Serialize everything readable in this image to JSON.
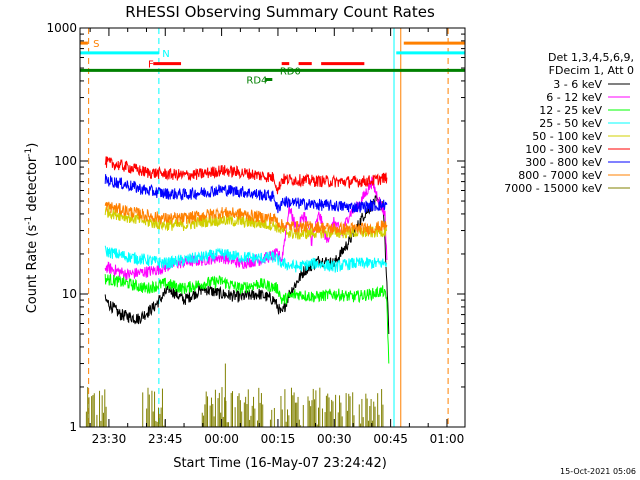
{
  "chart_data": {
    "type": "line",
    "title": "RHESSI Observing Summary Count Rates",
    "xlabel": "Start Time (16-May-07 23:24:42)",
    "ylabel_main": "Count Rate (s",
    "ylabel_sup1": "-1",
    "ylabel_mid": " detector",
    "ylabel_sup2": "-1",
    "ylabel_end": ")",
    "y_scale": "log",
    "ylim": [
      1,
      1000
    ],
    "xlim_minutes": [
      -7.7,
      94.8
    ],
    "x_ticks": [
      {
        "label": "23:30",
        "t": 0
      },
      {
        "label": "23:45",
        "t": 15
      },
      {
        "label": "00:00",
        "t": 30
      },
      {
        "label": "00:15",
        "t": 45
      },
      {
        "label": "00:30",
        "t": 60
      },
      {
        "label": "00:45",
        "t": 75
      },
      {
        "label": "01:00",
        "t": 90
      }
    ],
    "y_ticks": [
      {
        "label": "1",
        "v": 1
      },
      {
        "label": "10",
        "v": 10
      },
      {
        "label": "100",
        "v": 100
      },
      {
        "label": "1000",
        "v": 1000
      }
    ],
    "legend_header": [
      "Det 1,3,4,5,6,9,",
      "FDecim 1, Att 0"
    ],
    "series": [
      {
        "name": "3 - 6 keV",
        "color": "#000000",
        "points": [
          [
            -1,
            9
          ],
          [
            3,
            7
          ],
          [
            8,
            6.5
          ],
          [
            12,
            8
          ],
          [
            16,
            11
          ],
          [
            20,
            9
          ],
          [
            25,
            11
          ],
          [
            30,
            10
          ],
          [
            35,
            9.5
          ],
          [
            40,
            10
          ],
          [
            44,
            9
          ],
          [
            46,
            7
          ],
          [
            48,
            10
          ],
          [
            52,
            15
          ],
          [
            56,
            18
          ],
          [
            60,
            17
          ],
          [
            64,
            25
          ],
          [
            68,
            40
          ],
          [
            71,
            50
          ],
          [
            73,
            45
          ],
          [
            74,
            12
          ],
          [
            74.5,
            5
          ]
        ]
      },
      {
        "name": "6 - 12 keV",
        "color": "#ff00ff",
        "points": [
          [
            -1,
            16
          ],
          [
            5,
            14
          ],
          [
            12,
            15
          ],
          [
            18,
            17
          ],
          [
            25,
            18
          ],
          [
            30,
            19
          ],
          [
            35,
            17
          ],
          [
            40,
            18
          ],
          [
            45,
            20
          ],
          [
            46,
            18
          ],
          [
            48,
            45
          ],
          [
            50,
            30
          ],
          [
            52,
            40
          ],
          [
            54,
            25
          ],
          [
            56,
            40
          ],
          [
            58,
            25
          ],
          [
            60,
            35
          ],
          [
            62,
            28
          ],
          [
            64,
            40
          ],
          [
            66,
            45
          ],
          [
            68,
            55
          ],
          [
            70,
            70
          ],
          [
            72,
            50
          ],
          [
            73.5,
            40
          ],
          [
            74,
            18
          ]
        ]
      },
      {
        "name": "12 - 25 keV",
        "color": "#00ff00",
        "points": [
          [
            -1,
            13
          ],
          [
            5,
            12
          ],
          [
            10,
            11
          ],
          [
            15,
            12
          ],
          [
            20,
            11
          ],
          [
            25,
            12
          ],
          [
            30,
            12.5
          ],
          [
            35,
            11
          ],
          [
            40,
            12
          ],
          [
            45,
            11
          ],
          [
            46,
            9
          ],
          [
            50,
            10
          ],
          [
            55,
            9.5
          ],
          [
            60,
            10
          ],
          [
            65,
            9.5
          ],
          [
            70,
            10
          ],
          [
            73,
            10.5
          ],
          [
            74,
            9
          ],
          [
            74.5,
            3
          ]
        ]
      },
      {
        "name": "25 - 50 keV",
        "color": "#00ffff",
        "points": [
          [
            -1,
            21
          ],
          [
            5,
            19
          ],
          [
            10,
            18
          ],
          [
            15,
            17
          ],
          [
            20,
            18
          ],
          [
            25,
            19
          ],
          [
            30,
            20
          ],
          [
            35,
            19
          ],
          [
            40,
            18.5
          ],
          [
            44,
            19
          ],
          [
            46,
            17
          ],
          [
            50,
            16
          ],
          [
            55,
            17
          ],
          [
            60,
            16
          ],
          [
            65,
            17
          ],
          [
            70,
            17
          ],
          [
            74,
            17
          ]
        ]
      },
      {
        "name": "50 - 100 keV",
        "color": "#d0d000",
        "points": [
          [
            -1,
            42
          ],
          [
            5,
            38
          ],
          [
            10,
            35
          ],
          [
            15,
            33
          ],
          [
            20,
            33
          ],
          [
            25,
            35
          ],
          [
            30,
            36
          ],
          [
            35,
            35
          ],
          [
            40,
            34
          ],
          [
            44,
            33
          ],
          [
            46,
            30
          ],
          [
            50,
            28
          ],
          [
            55,
            29
          ],
          [
            60,
            29
          ],
          [
            65,
            29
          ],
          [
            70,
            29
          ],
          [
            74,
            30
          ]
        ]
      },
      {
        "name": "100 - 300 keV",
        "color": "#ff0000",
        "points": [
          [
            -1,
            98
          ],
          [
            5,
            90
          ],
          [
            10,
            82
          ],
          [
            15,
            80
          ],
          [
            20,
            78
          ],
          [
            25,
            80
          ],
          [
            30,
            85
          ],
          [
            35,
            82
          ],
          [
            40,
            78
          ],
          [
            44,
            75
          ],
          [
            45,
            60
          ],
          [
            46,
            73
          ],
          [
            50,
            72
          ],
          [
            55,
            71
          ],
          [
            60,
            70
          ],
          [
            65,
            70
          ],
          [
            70,
            71
          ],
          [
            74,
            75
          ]
        ]
      },
      {
        "name": "300 - 800 keV",
        "color": "#0000ff",
        "points": [
          [
            -1,
            72
          ],
          [
            5,
            66
          ],
          [
            10,
            60
          ],
          [
            15,
            57
          ],
          [
            20,
            56
          ],
          [
            25,
            58
          ],
          [
            30,
            61
          ],
          [
            35,
            59
          ],
          [
            40,
            56
          ],
          [
            44,
            54
          ],
          [
            45,
            42
          ],
          [
            46,
            50
          ],
          [
            50,
            48
          ],
          [
            55,
            47
          ],
          [
            60,
            46
          ],
          [
            65,
            45
          ],
          [
            70,
            46
          ],
          [
            74,
            47
          ]
        ]
      },
      {
        "name": "800 - 7000 keV",
        "color": "#ff8000",
        "points": [
          [
            -1,
            46
          ],
          [
            5,
            42
          ],
          [
            10,
            39
          ],
          [
            15,
            37
          ],
          [
            20,
            37
          ],
          [
            25,
            39
          ],
          [
            30,
            41
          ],
          [
            35,
            40
          ],
          [
            40,
            38
          ],
          [
            44,
            37
          ],
          [
            46,
            33
          ],
          [
            50,
            32
          ],
          [
            55,
            32
          ],
          [
            60,
            31
          ],
          [
            65,
            31
          ],
          [
            70,
            31
          ],
          [
            74,
            33
          ]
        ]
      },
      {
        "name": "7000 - 15000 keV",
        "color": "#808000",
        "points": []
      }
    ],
    "bars_7000": {
      "color": "#808000",
      "level_ranges": [
        [
          -6,
          -0.5
        ],
        [
          9,
          15
        ],
        [
          24.5,
          41
        ],
        [
          43,
          52
        ],
        [
          53,
          73
        ]
      ],
      "height_range": [
        1,
        2
      ],
      "peak_at": 31,
      "peak_value": 3
    },
    "attenuator_markers": [
      {
        "label": "S",
        "color": "#ff8000",
        "t_range": [
          -7.7,
          -5.6
        ],
        "level": 770
      },
      {
        "label": "N",
        "color": "#00ffff",
        "t_range": [
          -7.7,
          13.3
        ],
        "level": 650
      },
      {
        "label": "F",
        "color": "#ff0000",
        "segments": [
          [
            11.8,
            19.2
          ]
        ],
        "level": 540
      },
      {
        "label": "F2",
        "color": "#ff0000",
        "segments": [
          [
            46,
            48
          ],
          [
            50.5,
            54
          ],
          [
            56.5,
            68
          ]
        ],
        "level": 540
      },
      {
        "label": "RD0",
        "color": "#008000",
        "t_range": [
          -7.7,
          94.8
        ],
        "level": 480
      },
      {
        "label": "RD4",
        "color": "#008000",
        "segments": [
          [
            41.5,
            43.5
          ]
        ],
        "level": 410
      },
      {
        "label": "N_right",
        "color": "#00ffff",
        "t_range": [
          76.5,
          94.8
        ],
        "level": 650
      },
      {
        "label": "S_right",
        "color": "#ff8000",
        "t_range": [
          78.5,
          94.8
        ],
        "level": 770
      }
    ],
    "marker_labels": [
      {
        "text": "S",
        "color": "#ff8000"
      },
      {
        "text": "N",
        "color": "#00ffff"
      },
      {
        "text": "F",
        "color": "#ff0000"
      },
      {
        "text": "RD0",
        "color": "#008000"
      },
      {
        "text": "RD4",
        "color": "#008000"
      }
    ],
    "vertical_lines": [
      {
        "t": -5.4,
        "color": "#ff8000",
        "style": "dashed"
      },
      {
        "t": 13.3,
        "color": "#00ffff",
        "style": "dashed"
      },
      {
        "t": 75.9,
        "color": "#00ffff",
        "style": "solid"
      },
      {
        "t": 77.7,
        "color": "#ff8000",
        "style": "solid"
      },
      {
        "t": 90.3,
        "color": "#ff8000",
        "style": "dashed"
      }
    ],
    "timestamp": "15-Oct-2021 05:06"
  }
}
